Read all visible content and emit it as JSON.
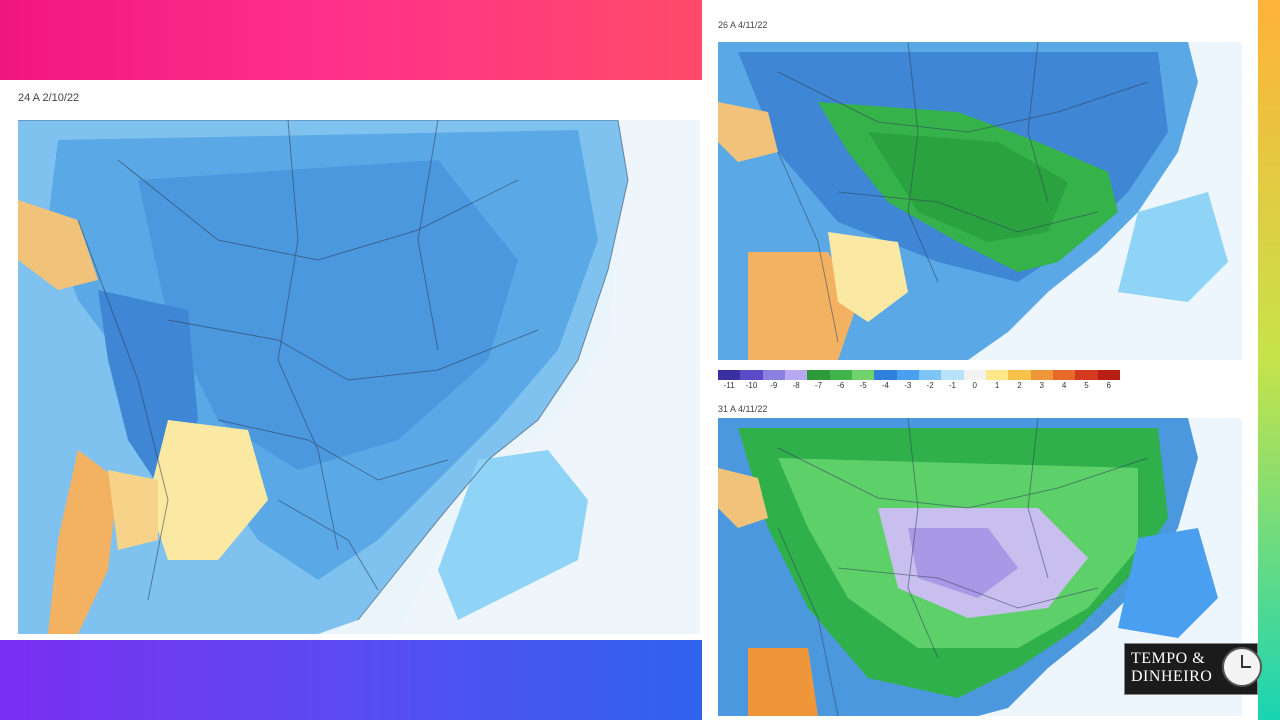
{
  "panels": {
    "main": {
      "label": "24 A 2/10/22"
    },
    "top_right": {
      "label": "26 A 4/11/22"
    },
    "bottom_right": {
      "label": "31 A 4/11/22"
    }
  },
  "scale": {
    "ticks": [
      "-11",
      "-10",
      "-9",
      "-8",
      "-7",
      "-6",
      "-5",
      "-4",
      "-3",
      "-2",
      "-1",
      "0",
      "1",
      "2",
      "3",
      "4",
      "5",
      "6"
    ],
    "colors": [
      "#3a2fa0",
      "#5b4bc8",
      "#8d7fe0",
      "#b7a9ef",
      "#2e9a3a",
      "#3fb44a",
      "#6fd26a",
      "#2f7fdc",
      "#4a9ff0",
      "#7fc4f7",
      "#b7e2fb",
      "#f2f2f2",
      "#ffe88a",
      "#f6c24a",
      "#f0963a",
      "#e86a2a",
      "#d63a1e",
      "#b81e14"
    ]
  },
  "brand": {
    "line1": "TEMPO &",
    "line2": "DINHEIRO"
  },
  "colors": {
    "top_band": "#f0167f",
    "bottom_band": "#5a4bf0",
    "right_band": "#c6e34a"
  }
}
